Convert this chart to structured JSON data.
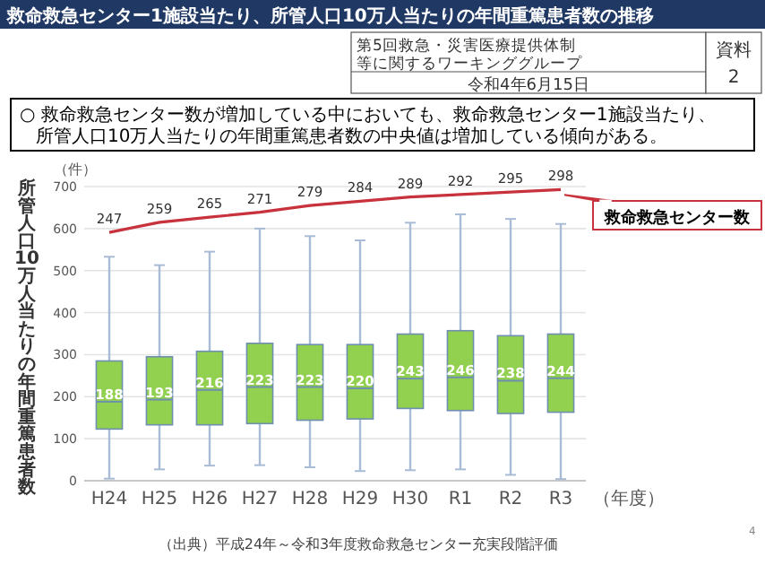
{
  "chart_data": {
    "type": "box",
    "title": "救命救急センター1施設当たり、所管人口10万人当たりの年間重篤患者数の推移",
    "subtitle": "○ 救命救急センター数が増加している中においても、救命救急センター1施設当たり、所管人口10万人当たりの年間重篤患者数の中央値は増加している傾向がある。",
    "xlabel": "（年度）",
    "ylabel": "所管人口10万人当たりの年間重篤患者数",
    "categories": [
      "H24",
      "H25",
      "H26",
      "H27",
      "H28",
      "H29",
      "H30",
      "R1",
      "R2",
      "R3"
    ],
    "ylim": [
      0,
      700
    ],
    "yticks": [
      0,
      100,
      200,
      300,
      400,
      500,
      600,
      700
    ],
    "y2lim": [
      -48.5,
      301.5
    ],
    "grid": "y",
    "data_labels": true,
    "series": [
      {
        "type": "box",
        "color": "#92d050",
        "value_labels": [
          "188",
          "193",
          "216",
          "223",
          "223",
          "220",
          "243",
          "246",
          "238",
          "244"
        ],
        "boxes": [
          {
            "low": 5,
            "q1": 123,
            "median": 188,
            "q3": 285,
            "high": 533
          },
          {
            "low": 27,
            "q1": 133,
            "median": 193,
            "q3": 295,
            "high": 513
          },
          {
            "low": 36,
            "q1": 133,
            "median": 216,
            "q3": 308,
            "high": 545
          },
          {
            "low": 37,
            "q1": 136,
            "median": 223,
            "q3": 327,
            "high": 600
          },
          {
            "low": 32,
            "q1": 144,
            "median": 223,
            "q3": 324,
            "high": 582
          },
          {
            "low": 23,
            "q1": 147,
            "median": 220,
            "q3": 324,
            "high": 572
          },
          {
            "low": 25,
            "q1": 172,
            "median": 243,
            "q3": 349,
            "high": 614
          },
          {
            "low": 27,
            "q1": 167,
            "median": 246,
            "q3": 357,
            "high": 634
          },
          {
            "low": 14,
            "q1": 160,
            "median": 238,
            "q3": 345,
            "high": 623
          },
          {
            "low": 4,
            "q1": 163,
            "median": 244,
            "q3": 349,
            "high": 611
          }
        ]
      },
      {
        "type": "line",
        "axis": "y2",
        "name": "救命救急センター数",
        "color": "#c8323c",
        "values": [
          247,
          259,
          265,
          271,
          279,
          284,
          289,
          292,
          295,
          298
        ]
      }
    ],
    "annotations": [
      "（件）",
      "第5回救急・災害医療提供体制等に関するワーキンググループ",
      "令和4年6月15日",
      "資料",
      "2",
      "（出典）平成24年～令和3年度救命救急センター充実段階評価",
      "4"
    ]
  }
}
